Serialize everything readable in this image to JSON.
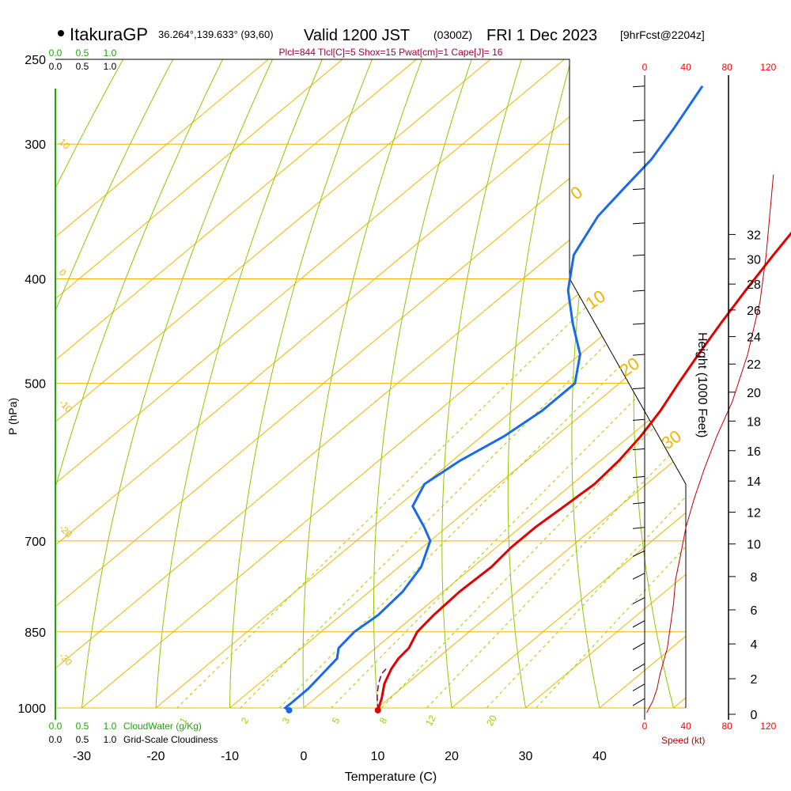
{
  "header": {
    "station": "ItakuraGP",
    "coords": "36.264°,139.633° (93,60)",
    "valid": "Valid 1200 JST",
    "utc": "(0300Z)",
    "date": "FRI 1 Dec 2023",
    "forecast": "[9hrFcst@2204z]",
    "indices": "Plcl=844 Tlcl[C]=5 Shox=15 Pwat[cm]=1 Cape[J]= 16"
  },
  "colors": {
    "isotherm": "#f0b400",
    "dry_adiabat": "#8cc800",
    "mixing_ratio": "#9ad000",
    "temperature": "#e00000",
    "dewpoint": "#1a6ae8",
    "parcel": "#800060",
    "cloud": "#1aa800",
    "wind_speed": "#c00000",
    "index_text": "#a00040"
  },
  "chart_data": {
    "type": "line",
    "title": "ItakuraGP Skew-T Sounding, Valid 1200 JST (0300Z) FRI 1 Dec 2023",
    "xlabel": "Temperature (C)",
    "ylabel": "P (hPa)",
    "height_label": "Height (1000 Feet)",
    "xlim": [
      -35,
      45
    ],
    "ylim": [
      1030,
      250
    ],
    "x_ticks": [
      -30,
      -20,
      -10,
      0,
      10,
      20,
      30,
      40
    ],
    "pressure_ticks": [
      250,
      300,
      400,
      500,
      700,
      850,
      1000
    ],
    "height_ticks": [
      0,
      2,
      4,
      6,
      8,
      10,
      12,
      14,
      16,
      18,
      20,
      22,
      24,
      26,
      28,
      30,
      32
    ],
    "speed_ticks": [
      0,
      40,
      80,
      120
    ],
    "speed_label": "Speed (kt)",
    "cloud_ticks": [
      "0.0",
      "0.5",
      "1.0"
    ],
    "cloudwater_label": "CloudWater (g/Kg)",
    "cloudiness_label": "Grid-Scale Cloudiness",
    "isotherm_labels": [
      "0",
      "10",
      "20",
      "30"
    ],
    "adiabat_labels": [
      "10",
      "0",
      "-10",
      "-20",
      "-30"
    ],
    "mixing_ratio_labels": [
      "1",
      "2",
      "3",
      "5",
      "8",
      "12",
      "20"
    ],
    "series": [
      {
        "name": "Temperature",
        "points": [
          [
            10.4,
            1005
          ],
          [
            9,
            980
          ],
          [
            7,
            950
          ],
          [
            5.5,
            920
          ],
          [
            4.8,
            900
          ],
          [
            4.5,
            880
          ],
          [
            3,
            850
          ],
          [
            2.5,
            820
          ],
          [
            2.2,
            780
          ],
          [
            2.5,
            740
          ],
          [
            2,
            710
          ],
          [
            2,
            680
          ],
          [
            2.5,
            650
          ],
          [
            3,
            620
          ],
          [
            2.5,
            590
          ],
          [
            1.5,
            560
          ],
          [
            0,
            530
          ],
          [
            -2,
            500
          ],
          [
            -4,
            470
          ],
          [
            -6,
            440
          ],
          [
            -8,
            410
          ],
          [
            -10,
            380
          ],
          [
            -12,
            350
          ],
          [
            -14,
            320
          ],
          [
            -15,
            300
          ],
          [
            -18,
            280
          ],
          [
            -21,
            265
          ]
        ]
      },
      {
        "name": "Dewpoint",
        "points": [
          [
            -1.6,
            1005
          ],
          [
            -2.5,
            1000
          ],
          [
            -2.5,
            990
          ],
          [
            -2.5,
            960
          ],
          [
            -3,
            930
          ],
          [
            -3.5,
            900
          ],
          [
            -5,
            880
          ],
          [
            -5.5,
            850
          ],
          [
            -5,
            820
          ],
          [
            -5.5,
            780
          ],
          [
            -7,
            740
          ],
          [
            -10,
            700
          ],
          [
            -13,
            680
          ],
          [
            -18,
            650
          ],
          [
            -20,
            620
          ],
          [
            -19,
            590
          ],
          [
            -17,
            560
          ],
          [
            -16,
            530
          ],
          [
            -16,
            500
          ],
          [
            -20,
            470
          ],
          [
            -26,
            440
          ],
          [
            -32,
            410
          ],
          [
            -37,
            380
          ],
          [
            -40,
            350
          ],
          [
            -41,
            330
          ],
          [
            -42,
            310
          ],
          [
            -44,
            290
          ],
          [
            -47,
            265
          ]
        ]
      },
      {
        "name": "Parcel",
        "points": [
          [
            10.4,
            1005
          ],
          [
            8,
            975
          ],
          [
            6.2,
            950
          ],
          [
            5,
            930
          ],
          [
            4.8,
            920
          ]
        ]
      }
    ],
    "winds_kt": [
      {
        "p": 265,
        "speed": 75
      },
      {
        "p": 285,
        "speed": 70
      },
      {
        "p": 305,
        "speed": 65
      },
      {
        "p": 330,
        "speed": 60
      },
      {
        "p": 355,
        "speed": 55
      },
      {
        "p": 380,
        "speed": 50
      },
      {
        "p": 410,
        "speed": 50
      },
      {
        "p": 440,
        "speed": 50
      },
      {
        "p": 470,
        "speed": 50
      },
      {
        "p": 505,
        "speed": 50
      },
      {
        "p": 540,
        "speed": 45
      },
      {
        "p": 575,
        "speed": 40
      },
      {
        "p": 610,
        "speed": 30
      },
      {
        "p": 645,
        "speed": 25
      },
      {
        "p": 680,
        "speed": 20
      },
      {
        "p": 715,
        "speed": 15
      },
      {
        "p": 750,
        "speed": 12
      },
      {
        "p": 790,
        "speed": 10
      },
      {
        "p": 830,
        "speed": 8
      },
      {
        "p": 870,
        "speed": 6
      },
      {
        "p": 910,
        "speed": 5
      },
      {
        "p": 950,
        "speed": 5
      },
      {
        "p": 980,
        "speed": 4
      }
    ],
    "speed_profile": [
      [
        2,
        1010
      ],
      [
        8,
        985
      ],
      [
        12,
        960
      ],
      [
        15,
        930
      ],
      [
        22,
        880
      ],
      [
        25,
        840
      ],
      [
        28,
        800
      ],
      [
        30,
        760
      ],
      [
        35,
        720
      ],
      [
        40,
        680
      ],
      [
        48,
        640
      ],
      [
        58,
        600
      ],
      [
        70,
        560
      ],
      [
        85,
        520
      ],
      [
        100,
        470
      ],
      [
        112,
        420
      ],
      [
        118,
        380
      ],
      [
        125,
        320
      ]
    ]
  }
}
